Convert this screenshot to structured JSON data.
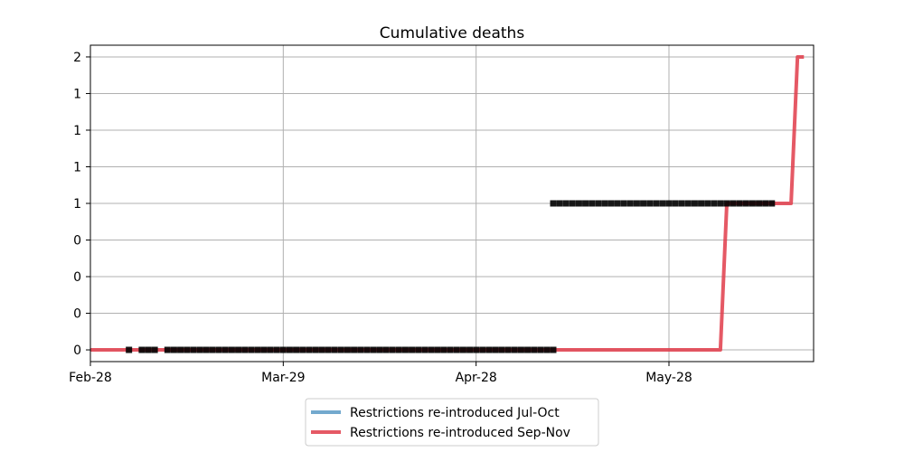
{
  "chart_data": {
    "type": "line",
    "title": "Cumulative deaths",
    "xlabel": "",
    "ylabel": "",
    "x_tick_labels": [
      "Feb-28",
      "Mar-29",
      "Apr-28",
      "May-28"
    ],
    "y_tick_labels": [
      "0",
      "0",
      "0",
      "0",
      "1",
      "1",
      "1",
      "1",
      "2"
    ],
    "ylim": [
      -0.08,
      2.08
    ],
    "grid": true,
    "legend_position": "bottom-center",
    "series": [
      {
        "name": "Restrictions re-introduced Jul-Oct",
        "color": "#5b9ac6",
        "x": [],
        "y": []
      },
      {
        "name": "Restrictions re-introduced Sep-Nov",
        "color": "#e03c4a",
        "x": [
          "Feb-28",
          "Jun-05",
          "Jun-06",
          "Jun-16",
          "Jun-17",
          "Jun-18"
        ],
        "y": [
          0,
          0,
          1,
          1,
          2,
          2
        ]
      },
      {
        "name": "",
        "color": "#000000",
        "marker": "square",
        "x": [
          "Mar-05",
          "Mar-07",
          "Mar-08",
          "Mar-09",
          "Mar-11",
          "Mar-12",
          "Mar-13",
          "Mar-14",
          "Mar-15",
          "Mar-16",
          "Mar-17",
          "Mar-18",
          "Mar-19",
          "Mar-20",
          "Mar-21",
          "Mar-22",
          "Mar-23",
          "Mar-24",
          "Mar-25",
          "Mar-26",
          "Mar-27",
          "Mar-28",
          "Mar-29",
          "Mar-30",
          "Mar-31",
          "Apr-01",
          "Apr-02",
          "Apr-03",
          "Apr-04",
          "Apr-05",
          "Apr-06",
          "Apr-07",
          "Apr-08",
          "Apr-09",
          "Apr-10",
          "Apr-11",
          "Apr-12",
          "Apr-13",
          "Apr-14",
          "Apr-15",
          "Apr-16",
          "Apr-17",
          "Apr-18",
          "Apr-19",
          "Apr-20",
          "Apr-21",
          "Apr-22",
          "Apr-23",
          "Apr-24",
          "Apr-25",
          "Apr-26",
          "Apr-27",
          "Apr-28",
          "Apr-29",
          "Apr-30",
          "May-01",
          "May-02",
          "May-03",
          "May-04",
          "May-05",
          "May-06",
          "May-07",
          "May-08",
          "May-09",
          "May-10",
          "May-10",
          "May-11",
          "May-12",
          "May-13",
          "May-14",
          "May-15",
          "May-16",
          "May-17",
          "May-18",
          "May-19",
          "May-20",
          "May-21",
          "May-22",
          "May-23",
          "May-24",
          "May-25",
          "May-26",
          "May-27",
          "May-28",
          "May-29",
          "May-30",
          "May-31",
          "Jun-01",
          "Jun-02",
          "Jun-03",
          "Jun-04",
          "Jun-05",
          "Jun-06",
          "Jun-07",
          "Jun-08",
          "Jun-09",
          "Jun-10",
          "Jun-11",
          "Jun-12",
          "Jun-13"
        ],
        "y": [
          0,
          0,
          0,
          0,
          0,
          0,
          0,
          0,
          0,
          0,
          0,
          0,
          0,
          0,
          0,
          0,
          0,
          0,
          0,
          0,
          0,
          0,
          0,
          0,
          0,
          0,
          0,
          0,
          0,
          0,
          0,
          0,
          0,
          0,
          0,
          0,
          0,
          0,
          0,
          0,
          0,
          0,
          0,
          0,
          0,
          0,
          0,
          0,
          0,
          0,
          0,
          0,
          0,
          0,
          0,
          0,
          0,
          0,
          0,
          0,
          0,
          0,
          0,
          0,
          0,
          1,
          1,
          1,
          1,
          1,
          1,
          1,
          1,
          1,
          1,
          1,
          1,
          1,
          1,
          1,
          1,
          1,
          1,
          1,
          1,
          1,
          1,
          1,
          1,
          1,
          1,
          1,
          1,
          1,
          1,
          1,
          1,
          1,
          1,
          1
        ]
      }
    ]
  }
}
